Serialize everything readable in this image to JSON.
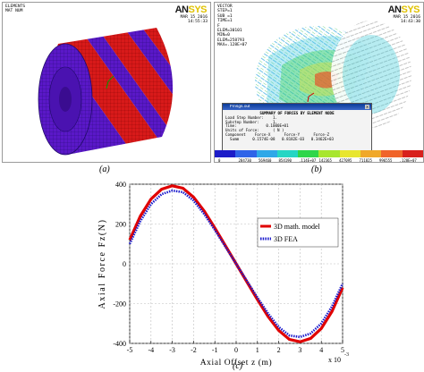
{
  "panel_a": {
    "header_lines": [
      "ELEMENTS",
      "MAT NUM"
    ],
    "date": "MAR 15 2016",
    "time": "14:55:33",
    "logo_an": "AN",
    "logo_sys": "SYS"
  },
  "panel_b": {
    "header_lines": [
      "VECTOR",
      "STEP=1",
      "SUB =1",
      "TIME=1",
      "F",
      "ELEM=30101",
      "MIN=0",
      "ELEM=258793",
      "MAX=.128E+07"
    ],
    "date": "MAR 15 2016",
    "time": "14:43:30",
    "logo_an": "AN",
    "logo_sys": "SYS",
    "dialog": {
      "title": "Fmsgs.out",
      "heading": "SUMMARY OF FORCES BY ELEMENT NODE",
      "lines": [
        "Load Step Number:    1.",
        "Substep Number:      1.",
        "Time:             0.1000E+01",
        "Units of Force:      ( N )",
        "Component    Force-X      Force-Y      Force-Z",
        "  Summ      0.1574E-08   0.8182E-03   0.3462E+03"
      ]
    },
    "legend_values": [
      "0",
      "284730",
      "569460",
      "854190",
      ".114E+07",
      "142365",
      "427095",
      "711825",
      "996555",
      ".128E+07"
    ],
    "legend_colors": [
      "#1c1cc8",
      "#2f64e8",
      "#2fa8e8",
      "#26d6c4",
      "#2fd64a",
      "#a8e62f",
      "#e8e62f",
      "#f0a82a",
      "#f0642a",
      "#d8201c"
    ]
  },
  "captions": {
    "a": "(a)",
    "b": "(b)",
    "c": "(c)"
  },
  "chart_data": {
    "type": "line",
    "xlabel": "Axial Offset z (m)",
    "ylabel": "Axial Force Fz(N)",
    "x_multiplier": "x 10",
    "x_multiplier_exp": "-3",
    "xlim": [
      -5,
      5
    ],
    "ylim": [
      -400,
      400
    ],
    "xticks": [
      -5,
      -4,
      -3,
      -2,
      -1,
      0,
      1,
      2,
      3,
      4,
      5
    ],
    "yticks": [
      400,
      200,
      0,
      -200,
      -400
    ],
    "grid": true,
    "legend_position": "top-right",
    "series": [
      {
        "name": "3D math. model",
        "color": "#e00000",
        "style": "solid",
        "x": [
          -5,
          -4.5,
          -4,
          -3.5,
          -3,
          -2.5,
          -2,
          -1.5,
          -1,
          -0.5,
          0,
          0.5,
          1,
          1.5,
          2,
          2.5,
          3,
          3.5,
          4,
          4.5,
          5
        ],
        "y": [
          120,
          240,
          325,
          375,
          392,
          380,
          335,
          265,
          180,
          90,
          0,
          -90,
          -180,
          -265,
          -335,
          -380,
          -392,
          -375,
          -325,
          -240,
          -120
        ]
      },
      {
        "name": "3D FEA",
        "color": "#1a1acc",
        "style": "dotted",
        "x": [
          -5,
          -4.5,
          -4,
          -3.5,
          -3,
          -2.5,
          -2,
          -1.5,
          -1,
          -0.5,
          0,
          0.5,
          1,
          1.5,
          2,
          2.5,
          3,
          3.5,
          4,
          4.5,
          5
        ],
        "y": [
          100,
          215,
          300,
          350,
          368,
          360,
          318,
          250,
          170,
          85,
          0,
          -85,
          -170,
          -250,
          -318,
          -360,
          -368,
          -350,
          -300,
          -215,
          -100
        ]
      }
    ]
  }
}
